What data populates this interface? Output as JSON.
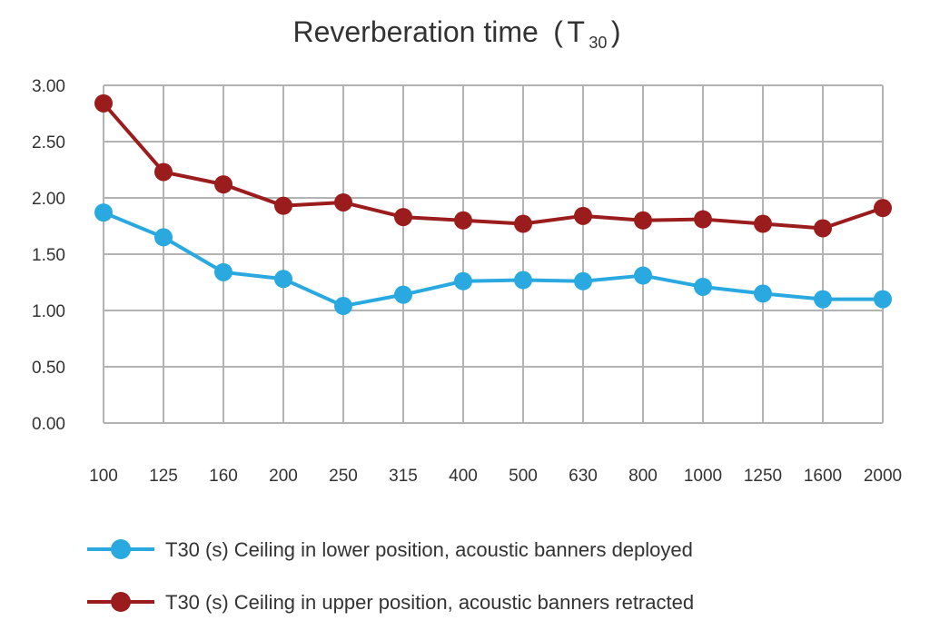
{
  "chart_data": {
    "type": "line",
    "title": "Reverberation time",
    "title_paren_open": "(",
    "title_symbol": "T",
    "title_subscript": "30",
    "title_paren_close": ")",
    "xlabel": "",
    "ylabel": "",
    "categories": [
      "100",
      "125",
      "160",
      "200",
      "250",
      "315",
      "400",
      "500",
      "630",
      "800",
      "1000",
      "1250",
      "1600",
      "2000"
    ],
    "ylim": [
      0,
      3
    ],
    "yticks": [
      "0.00",
      "0.50",
      "1.00",
      "1.50",
      "2.00",
      "2.50",
      "3.00"
    ],
    "grid": true,
    "legend_position": "bottom",
    "series": [
      {
        "name": "T30 (s) Ceiling in lower position, acoustic banners deployed",
        "color": "#29a9df",
        "values": [
          1.87,
          1.65,
          1.34,
          1.28,
          1.04,
          1.14,
          1.26,
          1.27,
          1.26,
          1.31,
          1.21,
          1.15,
          1.1,
          1.1
        ]
      },
      {
        "name": "T30 (s) Ceiling in upper position, acoustic banners retracted",
        "color": "#9b1c1c",
        "values": [
          2.84,
          2.23,
          2.12,
          1.93,
          1.96,
          1.83,
          1.8,
          1.77,
          1.84,
          1.8,
          1.81,
          1.77,
          1.73,
          1.91
        ]
      }
    ]
  }
}
